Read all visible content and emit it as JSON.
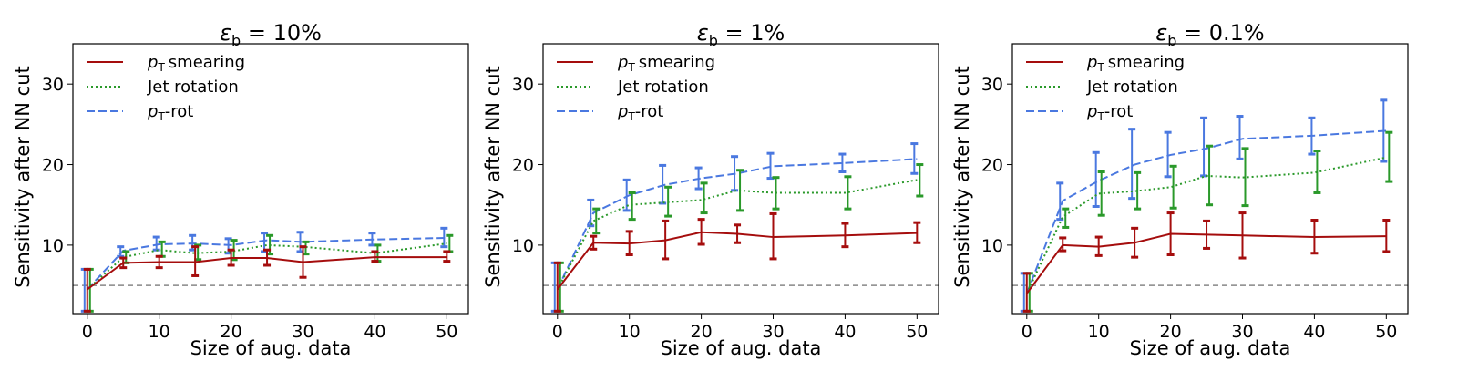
{
  "figure": {
    "ylabel": "Sensitivity after NN cut",
    "xlabel": "Size of aug. data",
    "xticks": [
      0,
      10,
      20,
      30,
      40,
      50
    ],
    "yticks": [
      10,
      20,
      30
    ],
    "legend": {
      "smear": {
        "label": "smearing",
        "symbol": "p",
        "sub": "T"
      },
      "rot": {
        "label": "Jet rotation"
      },
      "ptrot": {
        "label": "-rot",
        "symbol": "p",
        "sub": "T"
      }
    },
    "colors": {
      "smear": "#a50d0d",
      "rot": "#2a992a",
      "ptrot": "#4a78e0",
      "baseline": "#888888"
    },
    "baseline": 5.0
  },
  "chart_data": [
    {
      "type": "line",
      "title": {
        "symbol": "ε",
        "sub": "b",
        "rest": " = 10%"
      },
      "xlabel": "Size of aug. data",
      "ylabel": "Sensitivity after NN cut",
      "xlim": [
        -2,
        53
      ],
      "ylim": [
        1.5,
        35
      ],
      "x": [
        0,
        5,
        10,
        15,
        20,
        25,
        30,
        40,
        50
      ],
      "series": [
        {
          "key": "smear",
          "name": "pT smearing",
          "values": [
            4.5,
            7.8,
            7.9,
            7.9,
            8.4,
            8.4,
            7.9,
            8.5,
            8.5
          ],
          "err_lo": [
            1.8,
            7.2,
            7.2,
            6.2,
            7.5,
            7.5,
            6.0,
            8.0,
            8.0
          ],
          "err_hi": [
            7.0,
            8.4,
            8.6,
            9.8,
            9.4,
            9.4,
            9.8,
            9.2,
            9.2
          ]
        },
        {
          "key": "rot",
          "name": "Jet rotation",
          "values": [
            4.5,
            8.5,
            9.4,
            9.0,
            9.2,
            10.0,
            9.8,
            9.0,
            10.2
          ],
          "err_lo": [
            1.8,
            7.8,
            8.6,
            8.2,
            8.2,
            8.9,
            8.9,
            8.0,
            9.2
          ],
          "err_hi": [
            7.0,
            9.2,
            10.4,
            10.0,
            10.6,
            11.2,
            10.4,
            10.0,
            11.2
          ]
        },
        {
          "key": "ptrot",
          "name": "pT-rot",
          "values": [
            4.5,
            9.3,
            10.1,
            10.2,
            10.0,
            10.6,
            10.4,
            10.7,
            10.9
          ],
          "err_lo": [
            1.8,
            8.6,
            9.4,
            9.4,
            9.0,
            9.2,
            9.2,
            10.0,
            9.8
          ],
          "err_hi": [
            7.0,
            9.8,
            11.0,
            11.2,
            10.8,
            11.5,
            11.6,
            11.5,
            12.1
          ]
        }
      ]
    },
    {
      "type": "line",
      "title": {
        "symbol": "ε",
        "sub": "b",
        "rest": " = 1%"
      },
      "xlabel": "Size of aug. data",
      "ylabel": "Sensitivity after NN cut",
      "xlim": [
        -2,
        53
      ],
      "ylim": [
        1.5,
        35
      ],
      "x": [
        0,
        5,
        10,
        15,
        20,
        25,
        30,
        40,
        50
      ],
      "series": [
        {
          "key": "smear",
          "name": "pT smearing",
          "values": [
            4.5,
            10.3,
            10.2,
            10.6,
            11.6,
            11.4,
            11.0,
            11.2,
            11.5
          ],
          "err_lo": [
            1.8,
            9.5,
            8.8,
            8.3,
            10.1,
            10.3,
            8.3,
            9.8,
            10.3
          ],
          "err_hi": [
            7.8,
            11.1,
            11.7,
            13.0,
            13.2,
            12.5,
            13.9,
            12.7,
            12.8
          ]
        },
        {
          "key": "rot",
          "name": "Jet rotation",
          "values": [
            4.5,
            13.0,
            15.0,
            15.3,
            15.6,
            16.8,
            16.5,
            16.5,
            18.1
          ],
          "err_lo": [
            1.8,
            11.5,
            13.2,
            13.6,
            14.0,
            14.3,
            14.5,
            14.5,
            16.1
          ],
          "err_hi": [
            7.8,
            14.5,
            16.5,
            17.2,
            17.7,
            19.3,
            18.4,
            18.5,
            20.0
          ]
        },
        {
          "key": "ptrot",
          "name": "pT-rot",
          "values": [
            4.5,
            14.0,
            16.2,
            17.5,
            18.3,
            18.9,
            19.8,
            20.2,
            20.7
          ],
          "err_lo": [
            1.8,
            12.4,
            14.3,
            15.2,
            17.0,
            16.8,
            18.3,
            19.1,
            18.9
          ],
          "err_hi": [
            7.8,
            15.6,
            18.1,
            19.9,
            19.6,
            21.0,
            21.4,
            21.3,
            22.6
          ]
        }
      ]
    },
    {
      "type": "line",
      "title": {
        "symbol": "ε",
        "sub": "b",
        "rest": " = 0.1%"
      },
      "xlabel": "Size of aug. data",
      "ylabel": "Sensitivity after NN cut",
      "xlim": [
        -2,
        53
      ],
      "ylim": [
        1.5,
        35
      ],
      "x": [
        0,
        5,
        10,
        15,
        20,
        25,
        30,
        40,
        50
      ],
      "series": [
        {
          "key": "smear",
          "name": "pT smearing",
          "values": [
            4.0,
            10.0,
            9.8,
            10.3,
            11.4,
            11.3,
            11.2,
            11.0,
            11.1
          ],
          "err_lo": [
            1.8,
            9.3,
            8.7,
            8.5,
            8.8,
            9.6,
            8.4,
            9.0,
            9.2
          ],
          "err_hi": [
            6.5,
            10.9,
            11.0,
            12.1,
            14.0,
            13.0,
            14.0,
            13.1,
            13.1
          ]
        },
        {
          "key": "rot",
          "name": "Jet rotation",
          "values": [
            4.0,
            13.5,
            16.4,
            16.7,
            17.2,
            18.6,
            18.4,
            19.0,
            20.9
          ],
          "err_lo": [
            1.8,
            12.2,
            13.7,
            14.5,
            14.6,
            15.0,
            14.9,
            16.5,
            17.9
          ],
          "err_hi": [
            6.5,
            14.5,
            19.1,
            19.0,
            19.8,
            22.3,
            22.0,
            21.7,
            24.0
          ]
        },
        {
          "key": "ptrot",
          "name": "pT-rot",
          "values": [
            4.0,
            15.5,
            18.0,
            20.0,
            21.2,
            22.0,
            23.2,
            23.6,
            24.2
          ],
          "err_lo": [
            1.8,
            13.2,
            14.8,
            15.8,
            18.5,
            18.6,
            20.7,
            21.3,
            20.4
          ],
          "err_hi": [
            6.5,
            17.7,
            21.5,
            24.4,
            24.0,
            25.8,
            26.0,
            25.8,
            28.0
          ]
        }
      ]
    }
  ]
}
